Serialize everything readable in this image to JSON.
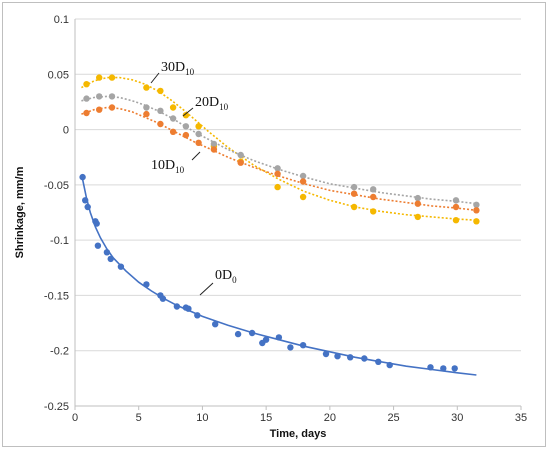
{
  "chart_data": {
    "type": "scatter",
    "xlabel": "Time, days",
    "ylabel": "Shrinkage, mm/m",
    "xlim": [
      0,
      35
    ],
    "ylim": [
      -0.25,
      0.1
    ],
    "x_ticks": [
      "0",
      "5",
      "10",
      "15",
      "20",
      "25",
      "30",
      "35"
    ],
    "y_ticks": [
      "0.1",
      "0.05",
      "0",
      "-0.05",
      "-0.1",
      "-0.15",
      "-0.2",
      "-0.25"
    ],
    "grid": "horizontal",
    "legend": "none",
    "series": [
      {
        "name": "30D",
        "name_sub": "10",
        "color": "#F5B800",
        "points": [
          [
            0.9,
            0.041
          ],
          [
            1.9,
            0.047
          ],
          [
            2.9,
            0.047
          ],
          [
            5.6,
            0.038
          ],
          [
            6.7,
            0.035
          ],
          [
            7.7,
            0.02
          ],
          [
            8.7,
            0.013
          ],
          [
            9.7,
            0.003
          ],
          [
            10.9,
            -0.015
          ],
          [
            13.0,
            -0.029
          ],
          [
            15.9,
            -0.052
          ],
          [
            17.9,
            -0.061
          ],
          [
            21.9,
            -0.07
          ],
          [
            23.4,
            -0.074
          ],
          [
            26.9,
            -0.079
          ],
          [
            29.9,
            -0.082
          ],
          [
            31.5,
            -0.083
          ]
        ],
        "trend": [
          [
            0.5,
            0.038
          ],
          [
            1.5,
            0.044
          ],
          [
            2.5,
            0.047
          ],
          [
            3.5,
            0.047
          ],
          [
            4.5,
            0.045
          ],
          [
            5.5,
            0.041
          ],
          [
            6.5,
            0.035
          ],
          [
            7.5,
            0.027
          ],
          [
            8.5,
            0.018
          ],
          [
            9.5,
            0.008
          ],
          [
            10.5,
            -0.002
          ],
          [
            12,
            -0.016
          ],
          [
            14,
            -0.032
          ],
          [
            16,
            -0.045
          ],
          [
            18,
            -0.056
          ],
          [
            20,
            -0.064
          ],
          [
            22,
            -0.07
          ],
          [
            24,
            -0.074
          ],
          [
            26,
            -0.077
          ],
          [
            28,
            -0.079
          ],
          [
            30,
            -0.081
          ],
          [
            31.5,
            -0.082
          ]
        ]
      },
      {
        "name": "20D",
        "name_sub": "10",
        "color": "#A5A5A5",
        "points": [
          [
            0.9,
            0.028
          ],
          [
            1.9,
            0.03
          ],
          [
            2.9,
            0.03
          ],
          [
            5.6,
            0.02
          ],
          [
            6.7,
            0.017
          ],
          [
            7.7,
            0.01
          ],
          [
            8.7,
            0.003
          ],
          [
            9.7,
            -0.004
          ],
          [
            10.9,
            -0.013
          ],
          [
            13.0,
            -0.023
          ],
          [
            15.9,
            -0.035
          ],
          [
            17.9,
            -0.042
          ],
          [
            21.9,
            -0.052
          ],
          [
            23.4,
            -0.054
          ],
          [
            26.9,
            -0.062
          ],
          [
            29.9,
            -0.064
          ],
          [
            31.5,
            -0.068
          ]
        ],
        "trend": [
          [
            0.5,
            0.026
          ],
          [
            1.5,
            0.029
          ],
          [
            2.5,
            0.03
          ],
          [
            3.5,
            0.029
          ],
          [
            4.5,
            0.026
          ],
          [
            5.5,
            0.022
          ],
          [
            6.5,
            0.017
          ],
          [
            7.5,
            0.011
          ],
          [
            8.5,
            0.004
          ],
          [
            9.5,
            -0.003
          ],
          [
            10.5,
            -0.009
          ],
          [
            12,
            -0.018
          ],
          [
            14,
            -0.028
          ],
          [
            16,
            -0.036
          ],
          [
            18,
            -0.043
          ],
          [
            20,
            -0.049
          ],
          [
            22,
            -0.053
          ],
          [
            24,
            -0.057
          ],
          [
            26,
            -0.06
          ],
          [
            28,
            -0.063
          ],
          [
            30,
            -0.065
          ],
          [
            31.5,
            -0.067
          ]
        ]
      },
      {
        "name": "10D",
        "name_sub": "10",
        "color": "#ED7D31",
        "points": [
          [
            0.9,
            0.015
          ],
          [
            1.9,
            0.018
          ],
          [
            2.9,
            0.02
          ],
          [
            5.6,
            0.014
          ],
          [
            6.7,
            0.005
          ],
          [
            7.7,
            -0.002
          ],
          [
            8.7,
            -0.005
          ],
          [
            9.7,
            -0.012
          ],
          [
            10.9,
            -0.018
          ],
          [
            13.0,
            -0.03
          ],
          [
            15.9,
            -0.04
          ],
          [
            17.9,
            -0.047
          ],
          [
            21.9,
            -0.058
          ],
          [
            23.4,
            -0.061
          ],
          [
            26.9,
            -0.067
          ],
          [
            29.9,
            -0.07
          ],
          [
            31.5,
            -0.073
          ]
        ],
        "trend": [
          [
            0.5,
            0.014
          ],
          [
            1.5,
            0.018
          ],
          [
            2.5,
            0.02
          ],
          [
            3.5,
            0.019
          ],
          [
            4.5,
            0.016
          ],
          [
            5.5,
            0.011
          ],
          [
            6.5,
            0.006
          ],
          [
            7.5,
            0.0
          ],
          [
            8.5,
            -0.006
          ],
          [
            9.5,
            -0.012
          ],
          [
            10.5,
            -0.017
          ],
          [
            12,
            -0.025
          ],
          [
            14,
            -0.034
          ],
          [
            16,
            -0.042
          ],
          [
            18,
            -0.049
          ],
          [
            20,
            -0.055
          ],
          [
            22,
            -0.059
          ],
          [
            24,
            -0.063
          ],
          [
            26,
            -0.066
          ],
          [
            28,
            -0.069
          ],
          [
            30,
            -0.071
          ],
          [
            31.5,
            -0.073
          ]
        ]
      },
      {
        "name": "0D",
        "name_sub": "0",
        "color": "#4472C4",
        "points": [
          [
            0.6,
            -0.043
          ],
          [
            0.8,
            -0.064
          ],
          [
            1.0,
            -0.07
          ],
          [
            1.6,
            -0.083
          ],
          [
            1.7,
            -0.085
          ],
          [
            1.8,
            -0.105
          ],
          [
            2.5,
            -0.111
          ],
          [
            2.8,
            -0.117
          ],
          [
            3.6,
            -0.124
          ],
          [
            5.6,
            -0.14
          ],
          [
            6.7,
            -0.15
          ],
          [
            6.9,
            -0.153
          ],
          [
            8.0,
            -0.16
          ],
          [
            8.7,
            -0.161
          ],
          [
            8.9,
            -0.162
          ],
          [
            9.6,
            -0.168
          ],
          [
            11.0,
            -0.176
          ],
          [
            12.8,
            -0.185
          ],
          [
            13.9,
            -0.184
          ],
          [
            14.7,
            -0.193
          ],
          [
            15.0,
            -0.19
          ],
          [
            16.0,
            -0.188
          ],
          [
            16.9,
            -0.197
          ],
          [
            17.9,
            -0.195
          ],
          [
            19.7,
            -0.203
          ],
          [
            20.6,
            -0.205
          ],
          [
            21.6,
            -0.206
          ],
          [
            22.7,
            -0.207
          ],
          [
            23.8,
            -0.21
          ],
          [
            24.7,
            -0.213
          ],
          [
            27.9,
            -0.215
          ],
          [
            28.9,
            -0.216
          ],
          [
            29.8,
            -0.216
          ]
        ],
        "trend": [
          [
            0.6,
            -0.045
          ],
          [
            0.9,
            -0.062
          ],
          [
            1.2,
            -0.075
          ],
          [
            1.6,
            -0.088
          ],
          [
            2.0,
            -0.098
          ],
          [
            2.5,
            -0.108
          ],
          [
            3.0,
            -0.116
          ],
          [
            4.0,
            -0.128
          ],
          [
            5.0,
            -0.138
          ],
          [
            6.0,
            -0.146
          ],
          [
            7.0,
            -0.153
          ],
          [
            8.0,
            -0.159
          ],
          [
            9.0,
            -0.164
          ],
          [
            10.0,
            -0.169
          ],
          [
            12.0,
            -0.177
          ],
          [
            14.0,
            -0.184
          ],
          [
            16.0,
            -0.19
          ],
          [
            18.0,
            -0.196
          ],
          [
            20.0,
            -0.201
          ],
          [
            22.0,
            -0.206
          ],
          [
            24.0,
            -0.21
          ],
          [
            26.0,
            -0.214
          ],
          [
            28.0,
            -0.217
          ],
          [
            30.0,
            -0.22
          ],
          [
            31.5,
            -0.222
          ]
        ]
      }
    ]
  }
}
